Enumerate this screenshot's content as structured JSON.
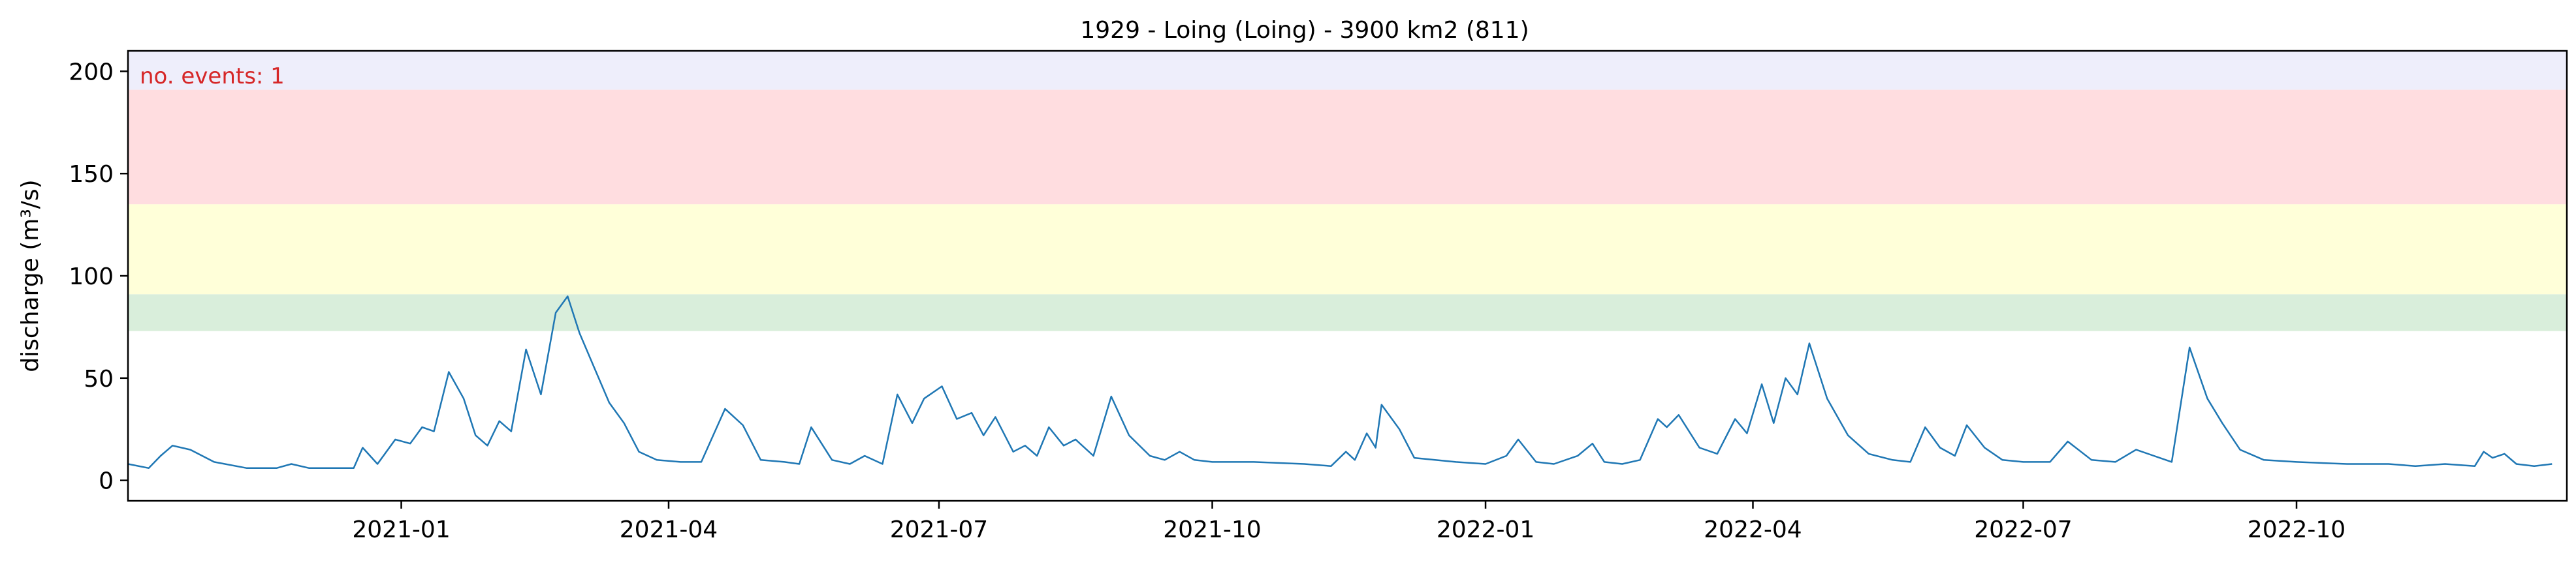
{
  "chart_data": {
    "type": "line",
    "title": "1929 - Loing (Loing) - 3900 km2 (811)",
    "xlabel": "",
    "ylabel": "discharge (m³/s)",
    "xlim": [
      "2020-10-01",
      "2022-12-31"
    ],
    "ylim": [
      -10,
      210
    ],
    "x_ticks": [
      "2021-01",
      "2021-04",
      "2021-07",
      "2021-10",
      "2022-01",
      "2022-04",
      "2022-07",
      "2022-10"
    ],
    "x_tick_dates": [
      "2021-01-01",
      "2021-04-01",
      "2021-07-01",
      "2021-10-01",
      "2022-01-01",
      "2022-04-01",
      "2022-07-01",
      "2022-10-01"
    ],
    "y_ticks": [
      0,
      50,
      100,
      150,
      200
    ],
    "grid": false,
    "annotation": {
      "text": "no. events: 1",
      "color": "#d62728"
    },
    "threshold_bands": [
      {
        "from": 73,
        "to": 91,
        "color": "#d9eedb"
      },
      {
        "from": 91,
        "to": 135,
        "color": "#ffffd9"
      },
      {
        "from": 135,
        "to": 191,
        "color": "#ffdde0"
      },
      {
        "from": 191,
        "to": 210,
        "color": "#eeeefb"
      }
    ],
    "series": [
      {
        "color": "#1f77b4",
        "points": [
          [
            "2020-10-01",
            8
          ],
          [
            "2020-10-08",
            6
          ],
          [
            "2020-10-12",
            12
          ],
          [
            "2020-10-16",
            17
          ],
          [
            "2020-10-22",
            15
          ],
          [
            "2020-10-30",
            9
          ],
          [
            "2020-11-10",
            6
          ],
          [
            "2020-11-20",
            6
          ],
          [
            "2020-11-25",
            8
          ],
          [
            "2020-12-01",
            6
          ],
          [
            "2020-12-10",
            6
          ],
          [
            "2020-12-16",
            6
          ],
          [
            "2020-12-19",
            16
          ],
          [
            "2020-12-24",
            8
          ],
          [
            "2020-12-30",
            20
          ],
          [
            "2021-01-04",
            18
          ],
          [
            "2021-01-08",
            26
          ],
          [
            "2021-01-12",
            24
          ],
          [
            "2021-01-17",
            53
          ],
          [
            "2021-01-22",
            40
          ],
          [
            "2021-01-26",
            22
          ],
          [
            "2021-01-30",
            17
          ],
          [
            "2021-02-03",
            29
          ],
          [
            "2021-02-07",
            24
          ],
          [
            "2021-02-12",
            64
          ],
          [
            "2021-02-17",
            42
          ],
          [
            "2021-02-22",
            82
          ],
          [
            "2021-02-26",
            90
          ],
          [
            "2021-03-02",
            72
          ],
          [
            "2021-03-07",
            55
          ],
          [
            "2021-03-12",
            38
          ],
          [
            "2021-03-17",
            28
          ],
          [
            "2021-03-22",
            14
          ],
          [
            "2021-03-28",
            10
          ],
          [
            "2021-04-05",
            9
          ],
          [
            "2021-04-12",
            9
          ],
          [
            "2021-04-16",
            22
          ],
          [
            "2021-04-20",
            35
          ],
          [
            "2021-04-26",
            27
          ],
          [
            "2021-05-02",
            10
          ],
          [
            "2021-05-10",
            9
          ],
          [
            "2021-05-15",
            8
          ],
          [
            "2021-05-19",
            26
          ],
          [
            "2021-05-26",
            10
          ],
          [
            "2021-06-01",
            8
          ],
          [
            "2021-06-06",
            12
          ],
          [
            "2021-06-12",
            8
          ],
          [
            "2021-06-17",
            42
          ],
          [
            "2021-06-22",
            28
          ],
          [
            "2021-06-26",
            40
          ],
          [
            "2021-07-02",
            46
          ],
          [
            "2021-07-07",
            30
          ],
          [
            "2021-07-12",
            33
          ],
          [
            "2021-07-16",
            22
          ],
          [
            "2021-07-20",
            31
          ],
          [
            "2021-07-26",
            14
          ],
          [
            "2021-07-30",
            17
          ],
          [
            "2021-08-03",
            12
          ],
          [
            "2021-08-07",
            26
          ],
          [
            "2021-08-12",
            17
          ],
          [
            "2021-08-16",
            20
          ],
          [
            "2021-08-22",
            12
          ],
          [
            "2021-08-28",
            41
          ],
          [
            "2021-09-03",
            22
          ],
          [
            "2021-09-10",
            12
          ],
          [
            "2021-09-15",
            10
          ],
          [
            "2021-09-20",
            14
          ],
          [
            "2021-09-25",
            10
          ],
          [
            "2021-10-01",
            9
          ],
          [
            "2021-10-15",
            9
          ],
          [
            "2021-11-01",
            8
          ],
          [
            "2021-11-10",
            7
          ],
          [
            "2021-11-15",
            14
          ],
          [
            "2021-11-18",
            10
          ],
          [
            "2021-11-22",
            23
          ],
          [
            "2021-11-25",
            16
          ],
          [
            "2021-11-27",
            37
          ],
          [
            "2021-12-03",
            25
          ],
          [
            "2021-12-08",
            11
          ],
          [
            "2021-12-15",
            10
          ],
          [
            "2021-12-22",
            9
          ],
          [
            "2022-01-01",
            8
          ],
          [
            "2022-01-08",
            12
          ],
          [
            "2022-01-12",
            20
          ],
          [
            "2022-01-18",
            9
          ],
          [
            "2022-01-24",
            8
          ],
          [
            "2022-02-01",
            12
          ],
          [
            "2022-02-06",
            18
          ],
          [
            "2022-02-10",
            9
          ],
          [
            "2022-02-16",
            8
          ],
          [
            "2022-02-22",
            10
          ],
          [
            "2022-02-28",
            30
          ],
          [
            "2022-03-03",
            26
          ],
          [
            "2022-03-07",
            32
          ],
          [
            "2022-03-14",
            16
          ],
          [
            "2022-03-20",
            13
          ],
          [
            "2022-03-26",
            30
          ],
          [
            "2022-03-30",
            23
          ],
          [
            "2022-04-04",
            47
          ],
          [
            "2022-04-08",
            28
          ],
          [
            "2022-04-12",
            50
          ],
          [
            "2022-04-16",
            42
          ],
          [
            "2022-04-20",
            67
          ],
          [
            "2022-04-26",
            40
          ],
          [
            "2022-05-03",
            22
          ],
          [
            "2022-05-10",
            13
          ],
          [
            "2022-05-18",
            10
          ],
          [
            "2022-05-24",
            9
          ],
          [
            "2022-05-29",
            26
          ],
          [
            "2022-06-03",
            16
          ],
          [
            "2022-06-08",
            12
          ],
          [
            "2022-06-12",
            27
          ],
          [
            "2022-06-18",
            16
          ],
          [
            "2022-06-24",
            10
          ],
          [
            "2022-07-01",
            9
          ],
          [
            "2022-07-10",
            9
          ],
          [
            "2022-07-16",
            19
          ],
          [
            "2022-07-24",
            10
          ],
          [
            "2022-08-01",
            9
          ],
          [
            "2022-08-08",
            15
          ],
          [
            "2022-08-14",
            12
          ],
          [
            "2022-08-20",
            9
          ],
          [
            "2022-08-26",
            65
          ],
          [
            "2022-09-01",
            40
          ],
          [
            "2022-09-06",
            28
          ],
          [
            "2022-09-12",
            15
          ],
          [
            "2022-09-20",
            10
          ],
          [
            "2022-10-01",
            9
          ],
          [
            "2022-10-18",
            8
          ],
          [
            "2022-11-01",
            8
          ],
          [
            "2022-11-10",
            7
          ],
          [
            "2022-11-20",
            8
          ],
          [
            "2022-11-30",
            7
          ],
          [
            "2022-12-03",
            14
          ],
          [
            "2022-12-06",
            11
          ],
          [
            "2022-12-10",
            13
          ],
          [
            "2022-12-14",
            8
          ],
          [
            "2022-12-20",
            7
          ],
          [
            "2022-12-26",
            8
          ]
        ]
      }
    ]
  }
}
